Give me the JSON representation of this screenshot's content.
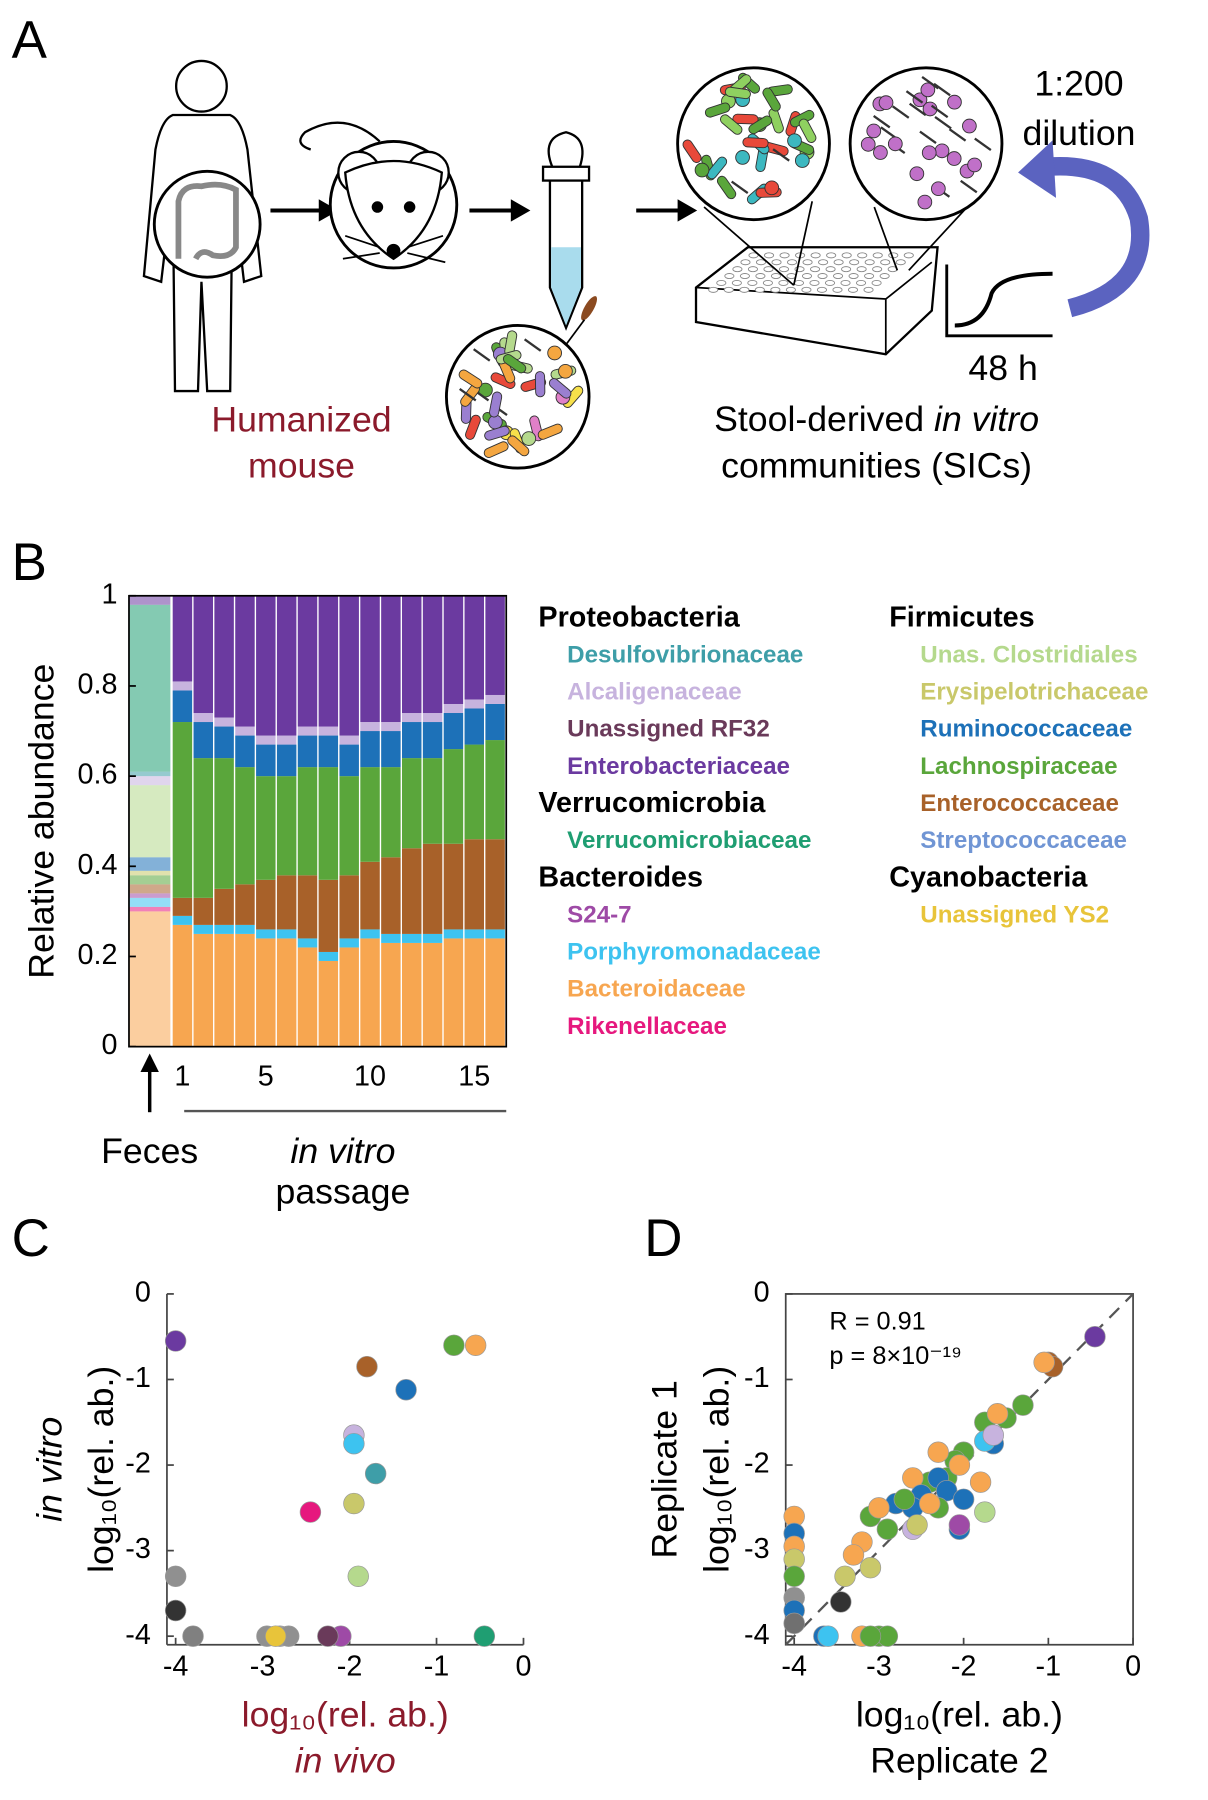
{
  "panel_a": {
    "panel_label": "A",
    "source_label": [
      "Humanized",
      "mouse"
    ],
    "sic_label": [
      "Stool-derived ",
      "in vitro",
      "communities (SICs)"
    ],
    "dilution": [
      "1:200",
      "dilution"
    ],
    "time": "48 h"
  },
  "chart_data": [
    {
      "type": "stacked_bar",
      "panel_label": "B",
      "y_label": "Relative abundance",
      "x_label": [
        "in vitro",
        "passage"
      ],
      "categories": [
        "Feces",
        "1",
        null,
        null,
        null,
        "5",
        null,
        null,
        null,
        null,
        "10",
        null,
        null,
        null,
        null,
        "15",
        null
      ],
      "ylim": [
        0,
        1
      ],
      "yticks": [
        0,
        0.2,
        0.4,
        0.6,
        0.8,
        1
      ],
      "groups": [
        {
          "name": "Proteobacteria",
          "series": [
            {
              "name": "Desulfovibrionaceae",
              "color": "#3e9ea8",
              "values": [
                0.01,
                0,
                0,
                0,
                0,
                0,
                0,
                0,
                0,
                0,
                0,
                0,
                0,
                0,
                0,
                0,
                0
              ]
            },
            {
              "name": "Alcaligenaceae",
              "color": "#c7b3de",
              "values": [
                0.02,
                0.02,
                0.02,
                0.02,
                0.02,
                0.02,
                0.02,
                0.02,
                0.02,
                0.02,
                0.02,
                0.02,
                0.02,
                0.02,
                0.02,
                0.02,
                0.02
              ]
            },
            {
              "name": "Unassigned RF32",
              "color": "#6a3a5a",
              "values": [
                0,
                0,
                0,
                0,
                0,
                0,
                0,
                0,
                0,
                0,
                0,
                0,
                0,
                0,
                0,
                0,
                0
              ]
            },
            {
              "name": "Enterobacteriaceae",
              "color": "#6b3aa0",
              "values": [
                0.02,
                0.19,
                0.26,
                0.27,
                0.29,
                0.31,
                0.31,
                0.29,
                0.29,
                0.31,
                0.28,
                0.28,
                0.26,
                0.26,
                0.24,
                0.23,
                0.22
              ]
            }
          ]
        },
        {
          "name": "Verrucomicrobia",
          "series": [
            {
              "name": "Verrucomicrobiaceae",
              "color": "#1f9e72",
              "values": [
                0.37,
                0,
                0,
                0,
                0,
                0,
                0,
                0,
                0,
                0,
                0,
                0,
                0,
                0,
                0,
                0,
                0
              ]
            }
          ]
        },
        {
          "name": "Bacteroides",
          "series": [
            {
              "name": "S24-7",
              "color": "#9e4aa6",
              "values": [
                0.01,
                0,
                0,
                0,
                0,
                0,
                0,
                0,
                0,
                0,
                0,
                0,
                0,
                0,
                0,
                0,
                0
              ]
            },
            {
              "name": "Porphyromonadaceae",
              "color": "#3dc3f0",
              "values": [
                0.02,
                0.02,
                0.02,
                0.02,
                0.02,
                0.02,
                0.02,
                0.02,
                0.02,
                0.02,
                0.02,
                0.02,
                0.02,
                0.02,
                0.02,
                0.02,
                0.02
              ]
            },
            {
              "name": "Bacteroidaceae",
              "color": "#f7a650",
              "values": [
                0.3,
                0.27,
                0.25,
                0.25,
                0.25,
                0.24,
                0.24,
                0.22,
                0.19,
                0.22,
                0.24,
                0.23,
                0.23,
                0.23,
                0.24,
                0.24,
                0.24
              ]
            },
            {
              "name": "Rikenellaceae",
              "color": "#e6187e",
              "values": [
                0.01,
                0,
                0,
                0,
                0,
                0,
                0,
                0,
                0,
                0,
                0,
                0,
                0,
                0,
                0,
                0,
                0
              ]
            }
          ]
        },
        {
          "name": "Firmicutes",
          "series": [
            {
              "name": "Unas. Clostridiales",
              "color": "#b5d98d",
              "values": [
                0.16,
                0,
                0,
                0,
                0,
                0,
                0,
                0,
                0,
                0,
                0,
                0,
                0,
                0,
                0,
                0,
                0
              ]
            },
            {
              "name": "Erysipelotrichaceae",
              "color": "#c9c86a",
              "values": [
                0.01,
                0,
                0,
                0,
                0,
                0,
                0,
                0,
                0,
                0,
                0,
                0,
                0,
                0,
                0,
                0,
                0
              ]
            },
            {
              "name": "Ruminococcaceae",
              "color": "#1d71b8",
              "values": [
                0.03,
                0.07,
                0.08,
                0.07,
                0.07,
                0.07,
                0.07,
                0.07,
                0.07,
                0.07,
                0.08,
                0.08,
                0.08,
                0.08,
                0.08,
                0.08,
                0.08
              ]
            },
            {
              "name": "Lachnospiraceae",
              "color": "#5aa63b",
              "values": [
                0.02,
                0.39,
                0.31,
                0.29,
                0.26,
                0.23,
                0.22,
                0.24,
                0.25,
                0.22,
                0.21,
                0.2,
                0.2,
                0.19,
                0.21,
                0.21,
                0.22
              ]
            },
            {
              "name": "Enterococcaceae",
              "color": "#a86129",
              "values": [
                0.02,
                0.04,
                0.06,
                0.08,
                0.09,
                0.11,
                0.12,
                0.14,
                0.16,
                0.14,
                0.15,
                0.17,
                0.19,
                0.2,
                0.19,
                0.2,
                0.2
              ]
            },
            {
              "name": "Streptococcaceae",
              "color": "#7095d4",
              "values": [
                0,
                0,
                0,
                0,
                0,
                0,
                0,
                0,
                0,
                0,
                0,
                0,
                0,
                0,
                0,
                0,
                0
              ]
            }
          ]
        },
        {
          "name": "Cyanobacteria",
          "series": [
            {
              "name": "Unassigned YS2",
              "color": "#e8c43a",
              "values": [
                0,
                0,
                0,
                0,
                0,
                0,
                0,
                0,
                0,
                0,
                0,
                0,
                0,
                0,
                0,
                0,
                0
              ]
            }
          ]
        }
      ]
    },
    {
      "type": "scatter",
      "panel_label": "C",
      "y_label": [
        "in vitro",
        "log₁₀(rel. ab.)"
      ],
      "x_label": [
        "log₁₀(rel. ab.)",
        "in  vivo"
      ],
      "xlim": [
        -4.1,
        0
      ],
      "ylim": [
        -4.1,
        0
      ],
      "xticks": [
        -4,
        -3,
        -2,
        -1,
        0
      ],
      "yticks": [
        -4,
        -3,
        -2,
        -1,
        0
      ],
      "frame": false,
      "x": [
        -4.0,
        -0.8,
        -0.55,
        -1.8,
        -1.35,
        -1.95,
        -1.95,
        -1.7,
        -2.45,
        -1.95,
        -1.9,
        -0.45,
        -4.0,
        -4.0,
        -3.8,
        -2.95,
        -2.8,
        -2.7,
        -2.85,
        -2.1,
        -2.25
      ],
      "values": [
        -0.55,
        -0.6,
        -0.6,
        -0.85,
        -1.12,
        -1.65,
        -1.75,
        -2.1,
        -2.55,
        -2.45,
        -3.3,
        -4.0,
        -3.3,
        -3.7,
        -4.0,
        -4.0,
        -4.0,
        -4.0,
        -4.0,
        -4.0,
        -4.0
      ],
      "colors": [
        "#6b3aa0",
        "#5aa63b",
        "#f7a650",
        "#a86129",
        "#1d71b8",
        "#c7b3de",
        "#3dc3f0",
        "#3e9ea8",
        "#e6187e",
        "#c9c86a",
        "#b5d98d",
        "#1f9e72",
        "#909090",
        "#333333",
        "#808080",
        "#909090",
        "#a0a0a0",
        "#909090",
        "#e8c43a",
        "#9e4aa6",
        "#6a3a5a"
      ]
    },
    {
      "type": "scatter",
      "panel_label": "D",
      "y_label": [
        "Replicate 1",
        "log₁₀(rel. ab.)"
      ],
      "x_label": [
        "log₁₀(rel. ab.)",
        "Replicate 2"
      ],
      "xlim": [
        -4.1,
        0
      ],
      "ylim": [
        -4.1,
        0
      ],
      "xticks": [
        -4,
        -3,
        -2,
        -1,
        0
      ],
      "yticks": [
        -4,
        -3,
        -2,
        -1,
        0
      ],
      "frame": true,
      "diagonal": true,
      "annotations": [
        "R = 0.91",
        "p = 8×10⁻¹⁹"
      ],
      "x": [
        -0.45,
        -1.0,
        -0.95,
        -1.05,
        -1.3,
        -1.5,
        -1.75,
        -1.6,
        -1.65,
        -1.75,
        -1.65,
        -2.0,
        -2.1,
        -2.4,
        -2.2,
        -2.3,
        -2.05,
        -2.6,
        -1.8,
        -1.75,
        -2.3,
        -2.5,
        -2.2,
        -2.0,
        -2.8,
        -2.6,
        -2.05,
        -2.3,
        -2.7,
        -2.9,
        -3.1,
        -3.2,
        -3.3,
        -3.0,
        -2.4,
        -2.05,
        -2.6,
        -2.55,
        -3.4,
        -3.1,
        -3.45,
        -4.0,
        -4.0,
        -4.0,
        -4.0,
        -4.0,
        -4.0,
        -4.0,
        -4.0,
        -3.65,
        -3.6,
        -3.2,
        -3.0,
        -2.9,
        -3.1
      ],
      "values": [
        -0.5,
        -0.8,
        -0.85,
        -0.8,
        -1.3,
        -1.45,
        -1.5,
        -1.4,
        -1.75,
        -1.72,
        -1.65,
        -1.85,
        -1.95,
        -2.2,
        -2.15,
        -1.85,
        -2.0,
        -2.15,
        -2.2,
        -2.55,
        -2.15,
        -2.35,
        -2.3,
        -2.4,
        -2.45,
        -2.5,
        -2.75,
        -2.5,
        -2.4,
        -2.75,
        -2.6,
        -2.9,
        -3.05,
        -2.5,
        -2.45,
        -2.7,
        -2.75,
        -2.7,
        -3.3,
        -3.2,
        -3.6,
        -2.6,
        -2.8,
        -2.95,
        -3.1,
        -3.3,
        -3.55,
        -3.7,
        -3.85,
        -4.0,
        -4.0,
        -4.0,
        -4.0,
        -4.0,
        -4.0
      ],
      "colors": [
        "#6b3aa0",
        "#a86129",
        "#a86129",
        "#f7a650",
        "#5aa63b",
        "#5aa63b",
        "#5aa63b",
        "#f7a650",
        "#1d71b8",
        "#3dc3f0",
        "#c7b3de",
        "#5aa63b",
        "#5aa63b",
        "#5aa63b",
        "#5aa63b",
        "#f7a650",
        "#f7a650",
        "#f7a650",
        "#f7a650",
        "#b5d98d",
        "#1d71b8",
        "#1d71b8",
        "#1d71b8",
        "#1d71b8",
        "#1d71b8",
        "#1d71b8",
        "#1d71b8",
        "#5aa63b",
        "#5aa63b",
        "#5aa63b",
        "#5aa63b",
        "#f7a650",
        "#f7a650",
        "#f7a650",
        "#f7a650",
        "#9e4aa6",
        "#c7b3de",
        "#c9c86a",
        "#c9c86a",
        "#c9c86a",
        "#333333",
        "#f7a650",
        "#1d71b8",
        "#f7a650",
        "#c9c86a",
        "#5aa63b",
        "#909090",
        "#1d71b8",
        "#707070",
        "#1d71b8",
        "#3dc3f0",
        "#f7a650",
        "#5aa63b",
        "#5aa63b",
        "#5aa63b"
      ]
    }
  ]
}
